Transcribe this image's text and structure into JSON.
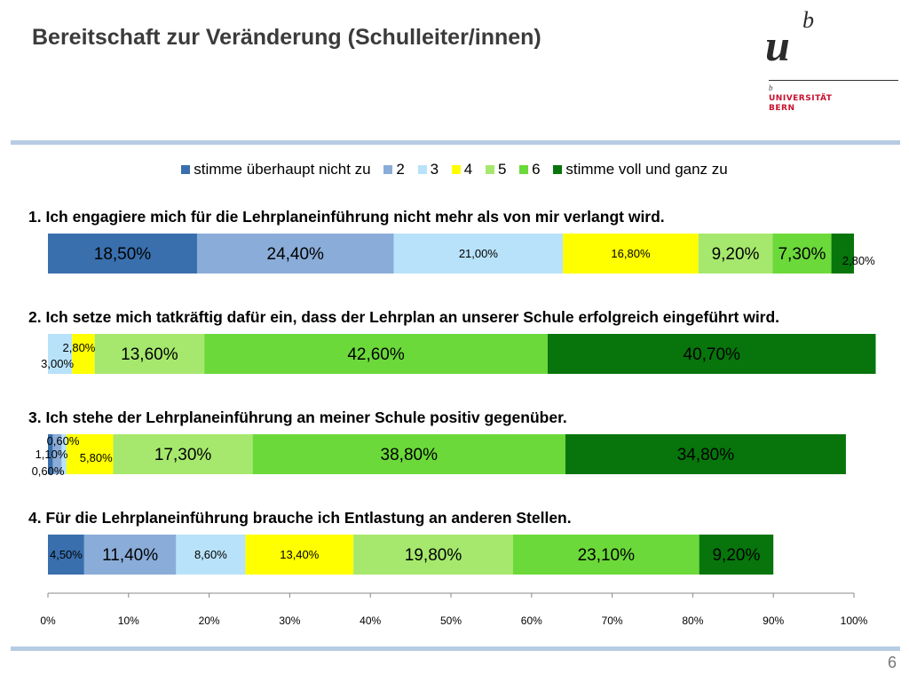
{
  "slide": {
    "title": "Bereitschaft zur Veränderung (Schulleiter/innen)",
    "page_number": "6"
  },
  "logo": {
    "mark_u": "u",
    "mark_b": "b",
    "small_b": "b",
    "line1": "UNIVERSITÄT",
    "line2": "BERN"
  },
  "chart_data": {
    "type": "bar",
    "orientation": "horizontal-stacked-100",
    "legend": [
      "stimme überhaupt nicht zu",
      "2",
      "3",
      "4",
      "5",
      "6",
      "stimme voll und ganz zu"
    ],
    "colors": [
      "#3a6fad",
      "#8aacd8",
      "#b8e2f9",
      "#ffff00",
      "#a6e86d",
      "#6cd93a",
      "#07750c"
    ],
    "xlim": [
      0,
      100
    ],
    "xticks": [
      "0%",
      "10%",
      "20%",
      "30%",
      "40%",
      "50%",
      "60%",
      "70%",
      "80%",
      "90%",
      "100%"
    ],
    "questions": [
      {
        "label": "1. Ich engagiere mich für die Lehrplaneinführung nicht mehr als von mir verlangt wird.",
        "values": [
          18.5,
          24.4,
          21.0,
          16.8,
          9.2,
          7.3,
          2.8
        ],
        "value_labels": [
          "18,50%",
          "24,40%",
          "21,00%",
          "16,80%",
          "9,20%",
          "7,30%",
          "2,80%"
        ]
      },
      {
        "label": "2. Ich setze mich tatkräftig dafür ein, dass der Lehrplan an unserer Schule erfolgreich eingeführt wird.",
        "values": [
          0,
          0,
          3.0,
          2.8,
          13.6,
          42.6,
          40.7
        ],
        "value_labels": [
          "",
          "",
          "3,00%",
          "2,80%",
          "13,60%",
          "42,60%",
          "40,70%"
        ]
      },
      {
        "label": "3. Ich stehe der Lehrplaneinführung an meiner Schule positiv gegenüber.",
        "values": [
          0.6,
          1.1,
          0.6,
          5.8,
          17.3,
          38.8,
          34.8
        ],
        "value_labels": [
          "0,60%",
          "1,10%",
          "0,60%",
          "5,80%",
          "17,30%",
          "38,80%",
          "34,80%"
        ]
      },
      {
        "label": "4. Für die Lehrplaneinführung brauche ich Entlastung an anderen Stellen.",
        "values": [
          4.5,
          11.4,
          8.6,
          13.4,
          19.8,
          23.1,
          9.2
        ],
        "value_labels": [
          "4,50%",
          "11,40%",
          "8,60%",
          "13,40%",
          "19,80%",
          "23,10%",
          "9,20%"
        ]
      }
    ]
  }
}
